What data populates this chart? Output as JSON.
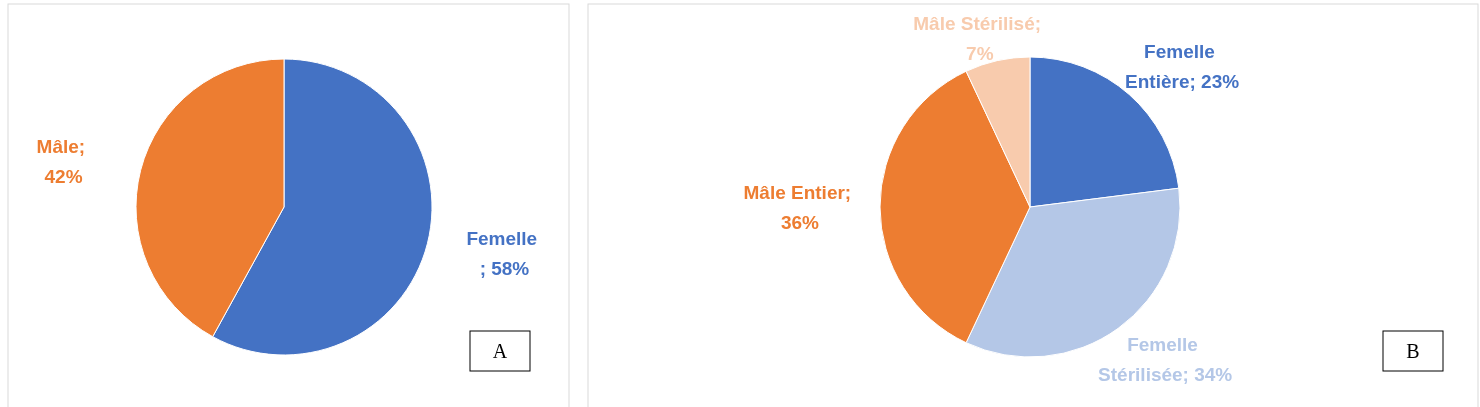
{
  "chart_data": [
    {
      "type": "pie",
      "categories": [
        "Femelle",
        "Mâle"
      ],
      "values": [
        58,
        42
      ],
      "colors": [
        "#4472c4",
        "#ed7d31"
      ],
      "value_labels": [
        " ; 58%",
        "; 42%"
      ],
      "annotations": [
        "A"
      ]
    },
    {
      "type": "pie",
      "categories": [
        "Femelle Entière",
        "Femelle Stérilisée",
        "Mâle Entier",
        "Mâle Stérilisé"
      ],
      "values": [
        23,
        34,
        36,
        7
      ],
      "colors": [
        "#4472c4",
        "#b4c7e7",
        "#ed7d31",
        "#f8cbad"
      ],
      "value_labels": [
        "; 23%",
        "; 34%",
        "; 36%",
        "; 7%"
      ],
      "annotations": [
        "B"
      ]
    }
  ]
}
